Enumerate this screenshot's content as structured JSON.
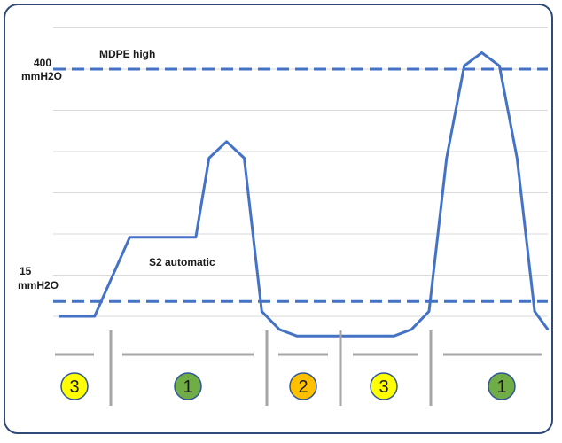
{
  "chart_data": {
    "type": "line",
    "title": "",
    "xlabel": "",
    "ylabel": "",
    "grid": true,
    "series": [
      {
        "points": [
          [
            0,
            0
          ],
          [
            40,
            0
          ],
          [
            80,
            48
          ],
          [
            100,
            48
          ],
          [
            155,
            48
          ],
          [
            170,
            96
          ],
          [
            190,
            106
          ],
          [
            210,
            96
          ],
          [
            230,
            3
          ],
          [
            250,
            -8
          ],
          [
            270,
            -12
          ],
          [
            380,
            -12
          ],
          [
            400,
            -8
          ],
          [
            420,
            3
          ],
          [
            440,
            96
          ],
          [
            460,
            152
          ],
          [
            480,
            160
          ],
          [
            500,
            152
          ],
          [
            520,
            96
          ],
          [
            540,
            3
          ],
          [
            555,
            -8
          ]
        ]
      }
    ],
    "thresholds": [
      {
        "label": "MDPE high",
        "value_label": "400",
        "unit": "mmH2O",
        "level": 150,
        "color": "#4472c4"
      },
      {
        "label": "S2 automatic",
        "value_label": "15",
        "unit": "mmH2O",
        "level": 9,
        "color": "#4472c4"
      }
    ],
    "phases": [
      {
        "id": "3",
        "color": "#ffff00"
      },
      {
        "id": "1",
        "color": "#70ad47"
      },
      {
        "id": "2",
        "color": "#ffc000"
      },
      {
        "id": "3",
        "color": "#ffff00"
      },
      {
        "id": "1",
        "color": "#70ad47"
      }
    ],
    "colors": {
      "line": "#4472c4",
      "grid": "#d9d9d9",
      "separator": "#a6a6a6",
      "frame": "#2f4a78"
    }
  }
}
